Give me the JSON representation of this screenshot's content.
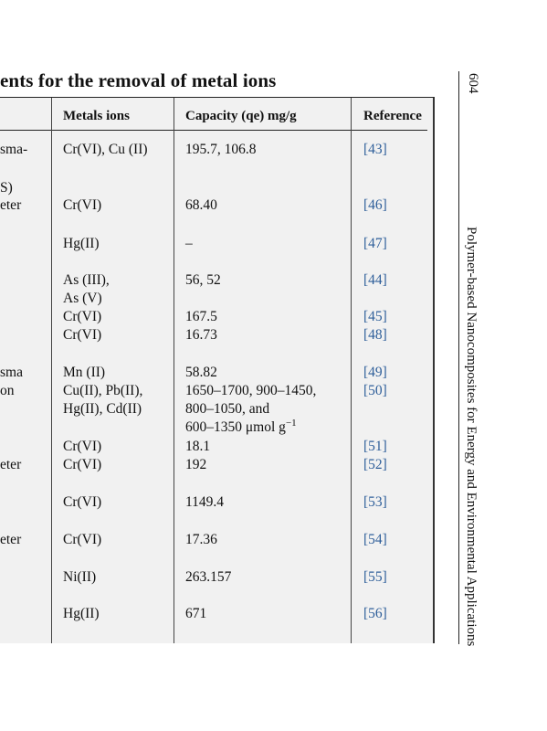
{
  "title": "ents for the removal of metal ions",
  "page_number": "604",
  "running_head": "Polymer-based Nanocomposites for Energy and Environmental Applications",
  "table": {
    "headers": {
      "metals": "Metals ions",
      "capacity": "Capacity (qe) mg/g",
      "reference": "Reference"
    },
    "left_fragments": [
      "sma-",
      "S)",
      "eter",
      "sma",
      "on",
      "eter",
      "eter"
    ],
    "rows": [
      {
        "metals": [
          "Cr(VI), Cu (II)"
        ],
        "capacity": [
          "195.7, 106.8"
        ],
        "reference": [
          "[43]"
        ]
      },
      {
        "metals": [
          "Cr(VI)"
        ],
        "capacity": [
          "68.40"
        ],
        "reference": [
          "[46]"
        ]
      },
      {
        "metals": [
          "Hg(II)"
        ],
        "capacity": [
          "–"
        ],
        "reference": [
          "[47]"
        ]
      },
      {
        "metals": [
          "As (III),",
          "As (V)"
        ],
        "capacity": [
          "56, 52"
        ],
        "reference": [
          "[44]"
        ]
      },
      {
        "metals": [
          "Cr(VI)",
          "Cr(VI)"
        ],
        "capacity": [
          "167.5",
          "16.73"
        ],
        "reference": [
          "[45]",
          "[48]"
        ]
      },
      {
        "metals": [
          "Mn (II)",
          "Cu(II), Pb(II),",
          "Hg(II), Cd(II)"
        ],
        "capacity": [
          "58.82",
          "1650–1700, 900–1450,",
          "800–1050, and",
          "600–1350 μmol g",
          "−1"
        ],
        "reference": [
          "[49]",
          "[50]"
        ]
      },
      {
        "metals": [
          "Cr(VI)",
          "Cr(VI)"
        ],
        "capacity": [
          "18.1",
          "192"
        ],
        "reference": [
          "[51]",
          "[52]"
        ]
      },
      {
        "metals": [
          "Cr(VI)"
        ],
        "capacity": [
          "1149.4"
        ],
        "reference": [
          "[53]"
        ]
      },
      {
        "metals": [
          "Cr(VI)"
        ],
        "capacity": [
          "17.36"
        ],
        "reference": [
          "[54]"
        ]
      },
      {
        "metals": [
          "Ni(II)"
        ],
        "capacity": [
          "263.157"
        ],
        "reference": [
          "[55]"
        ]
      },
      {
        "metals": [
          "Hg(II)"
        ],
        "capacity": [
          "671"
        ],
        "reference": [
          "[56]"
        ]
      }
    ]
  }
}
